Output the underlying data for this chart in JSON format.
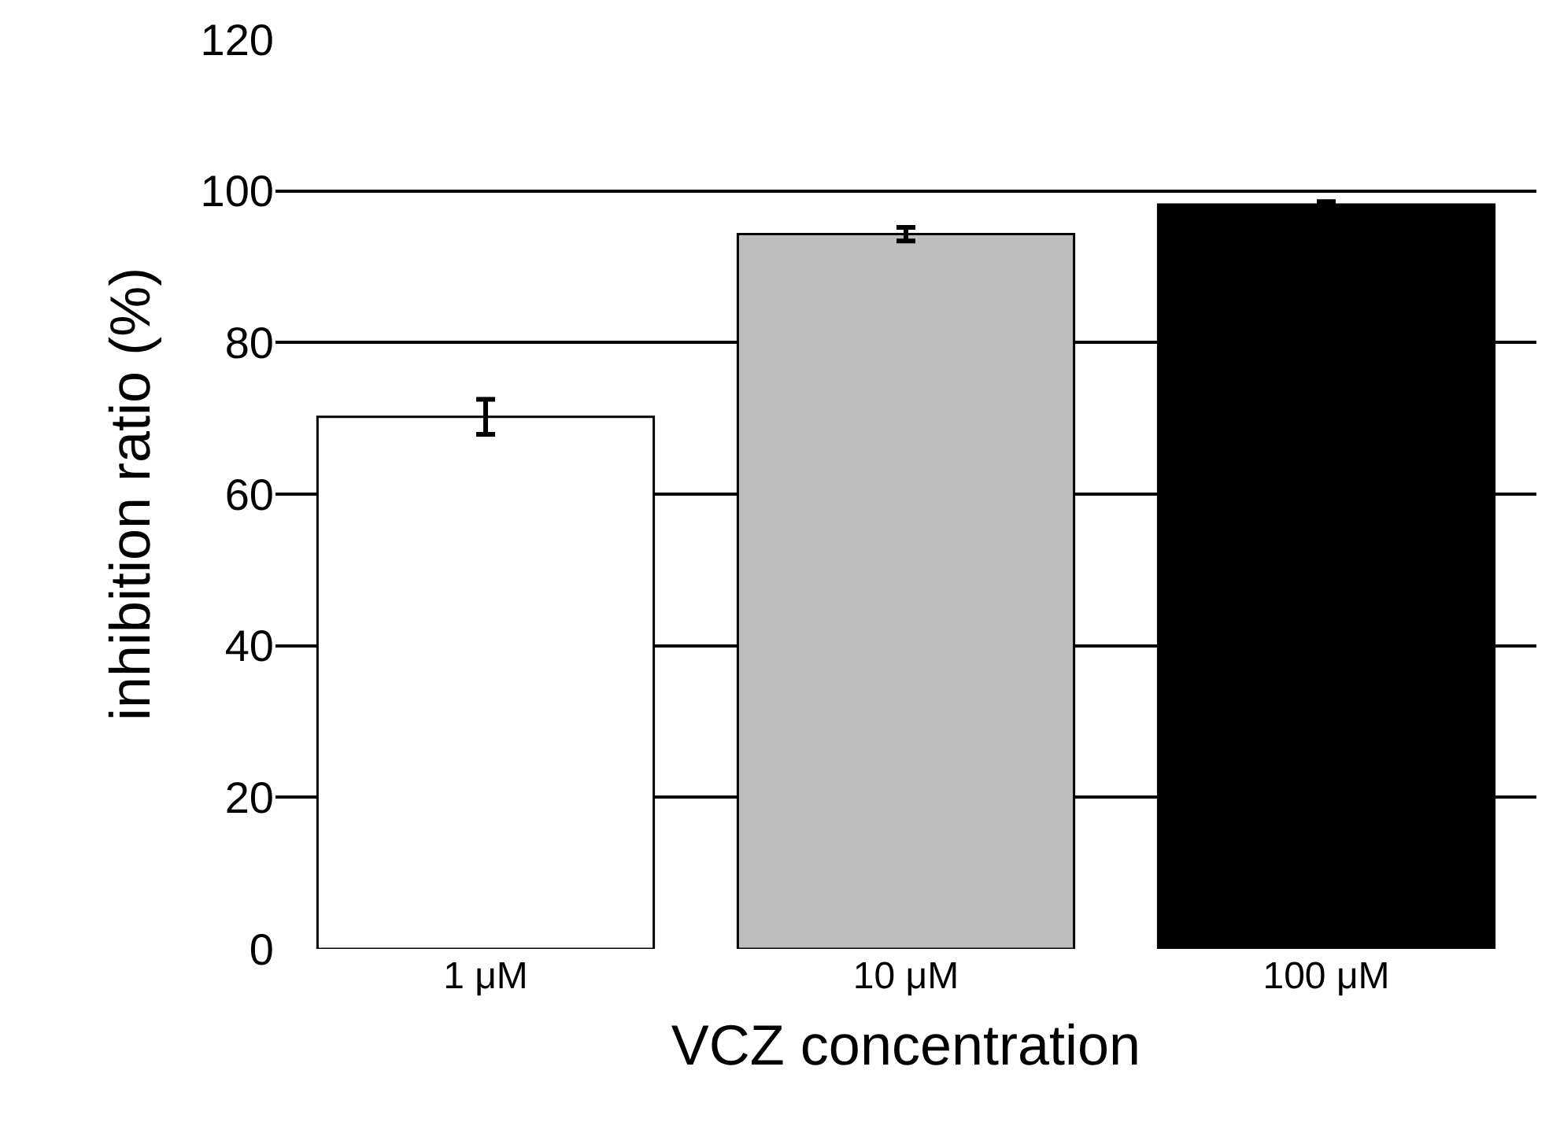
{
  "chart_data": {
    "type": "bar",
    "xlabel": "VCZ concentration",
    "ylabel": "inhibition ratio (%)",
    "categories": [
      "1 μM",
      "10 μM",
      "100 μM"
    ],
    "values": [
      70.2,
      94.3,
      98.2
    ],
    "colors": [
      "#ffffff",
      "#bdbdbd",
      "#000000"
    ],
    "errors": [
      2.3,
      0.9,
      0.4
    ],
    "ylim": [
      0,
      120
    ],
    "yticks": [
      0,
      20,
      40,
      60,
      80,
      100,
      120
    ],
    "grid": "y"
  }
}
